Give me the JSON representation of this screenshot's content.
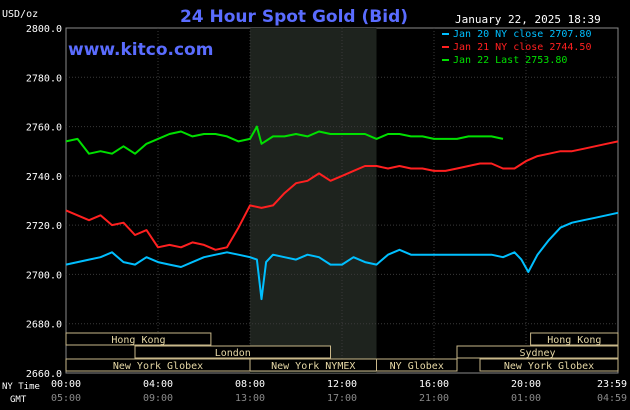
{
  "header": {
    "title": "24 Hour Spot Gold (Bid)",
    "unit": "USD/oz",
    "watermark": "www.kitco.com",
    "timestamp": "January 22, 2025 18:39"
  },
  "legend": [
    {
      "text": "Jan 20 NY close 2707.80",
      "color": "#00bfff"
    },
    {
      "text": "Jan 21 NY close 2744.50",
      "color": "#ff2020"
    },
    {
      "text": "Jan 22 Last 2753.80",
      "color": "#00e000"
    }
  ],
  "x_axis": {
    "row_labels": [
      "NY Time",
      "GMT"
    ],
    "ny_ticks": [
      "00:00",
      "04:00",
      "08:00",
      "12:00",
      "16:00",
      "20:00",
      "23:59"
    ],
    "gmt_ticks": [
      "05:00",
      "09:00",
      "13:00",
      "17:00",
      "21:00",
      "01:00",
      "04:59"
    ]
  },
  "y_axis": {
    "ticks": [
      "2800.0",
      "2780.0",
      "2760.0",
      "2740.0",
      "2720.0",
      "2700.0",
      "2680.0",
      "2660.0"
    ]
  },
  "sessions": [
    {
      "name": "Hong Kong",
      "start": 0,
      "end": 6.3,
      "row": 0
    },
    {
      "name": "Hong Kong",
      "start": 20.2,
      "end": 24,
      "row": 0
    },
    {
      "name": "London",
      "start": 3.0,
      "end": 11.5,
      "row": 1
    },
    {
      "name": "Sydney",
      "start": 17.0,
      "end": 24,
      "row": 1
    },
    {
      "name": "New York Globex",
      "start": 0,
      "end": 8.0,
      "row": 2
    },
    {
      "name": "New York NYMEX",
      "start": 8.0,
      "end": 13.5,
      "row": 2
    },
    {
      "name": "NY Globex",
      "start": 13.5,
      "end": 17.0,
      "row": 2
    },
    {
      "name": "New York Globex",
      "start": 18.0,
      "end": 24,
      "row": 2
    }
  ],
  "chart_data": {
    "type": "line",
    "title": "24 Hour Spot Gold (Bid)",
    "ylabel": "USD/oz",
    "xlabel": "NY Time",
    "xlim": [
      0,
      24
    ],
    "ylim": [
      2660,
      2800
    ],
    "grid": true,
    "shaded_x": [
      8.0,
      13.5
    ],
    "series": [
      {
        "name": "Jan 20 NY close 2707.80",
        "color": "#00bfff",
        "x": [
          0,
          0.5,
          1,
          1.5,
          2,
          2.5,
          3,
          3.5,
          4,
          4.5,
          5,
          5.5,
          6,
          6.5,
          7,
          7.5,
          8,
          8.3,
          8.5,
          8.7,
          9,
          9.5,
          10,
          10.5,
          11,
          11.5,
          12,
          12.5,
          13,
          13.5,
          14,
          14.5,
          15,
          15.5,
          16,
          16.5,
          17,
          17.5,
          18,
          18.5,
          19,
          19.5,
          19.8,
          20.1,
          20.5,
          21,
          21.5,
          22,
          22.5,
          23,
          23.5,
          24
        ],
        "values": [
          2704,
          2705,
          2706,
          2707,
          2709,
          2705,
          2704,
          2707,
          2705,
          2704,
          2703,
          2705,
          2707,
          2708,
          2709,
          2708,
          2707,
          2706,
          2690,
          2705,
          2708,
          2707,
          2706,
          2708,
          2707,
          2704,
          2704,
          2707,
          2705,
          2704,
          2708,
          2710,
          2708,
          2708,
          2708,
          2708,
          2708,
          2708,
          2708,
          2708,
          2707,
          2709,
          2706,
          2701,
          2708,
          2714,
          2719,
          2721,
          2722,
          2723,
          2724,
          2725
        ]
      },
      {
        "name": "Jan 21 NY close 2744.50",
        "color": "#ff2020",
        "x": [
          0,
          0.5,
          1,
          1.5,
          2,
          2.5,
          3,
          3.5,
          4,
          4.5,
          5,
          5.5,
          6,
          6.5,
          7,
          7.5,
          8,
          8.5,
          9,
          9.5,
          10,
          10.5,
          11,
          11.5,
          12,
          12.5,
          13,
          13.5,
          14,
          14.5,
          15,
          15.5,
          16,
          16.5,
          17,
          17.5,
          18,
          18.5,
          19,
          19.5,
          20,
          20.5,
          21,
          21.5,
          22,
          22.5,
          23,
          23.5,
          24
        ],
        "values": [
          2726,
          2724,
          2722,
          2724,
          2720,
          2721,
          2716,
          2718,
          2711,
          2712,
          2711,
          2713,
          2712,
          2710,
          2711,
          2719,
          2728,
          2727,
          2728,
          2733,
          2737,
          2738,
          2741,
          2738,
          2740,
          2742,
          2744,
          2744,
          2743,
          2744,
          2743,
          2743,
          2742,
          2742,
          2743,
          2744,
          2745,
          2745,
          2743,
          2743,
          2746,
          2748,
          2749,
          2750,
          2750,
          2751,
          2752,
          2753,
          2754
        ]
      },
      {
        "name": "Jan 22 Last 2753.80",
        "color": "#00e000",
        "x": [
          0,
          0.5,
          1,
          1.5,
          2,
          2.5,
          3,
          3.5,
          4,
          4.5,
          5,
          5.5,
          6,
          6.5,
          7,
          7.5,
          8,
          8.3,
          8.5,
          9,
          9.5,
          10,
          10.5,
          11,
          11.5,
          12,
          12.5,
          13,
          13.5,
          14,
          14.5,
          15,
          15.5,
          16,
          16.5,
          17,
          17.5,
          18,
          18.5,
          19
        ],
        "values": [
          2754,
          2755,
          2749,
          2750,
          2749,
          2752,
          2749,
          2753,
          2755,
          2757,
          2758,
          2756,
          2757,
          2757,
          2756,
          2754,
          2755,
          2760,
          2753,
          2756,
          2756,
          2757,
          2756,
          2758,
          2757,
          2757,
          2757,
          2757,
          2755,
          2757,
          2757,
          2756,
          2756,
          2755,
          2755,
          2755,
          2756,
          2756,
          2756,
          2755
        ]
      }
    ]
  }
}
